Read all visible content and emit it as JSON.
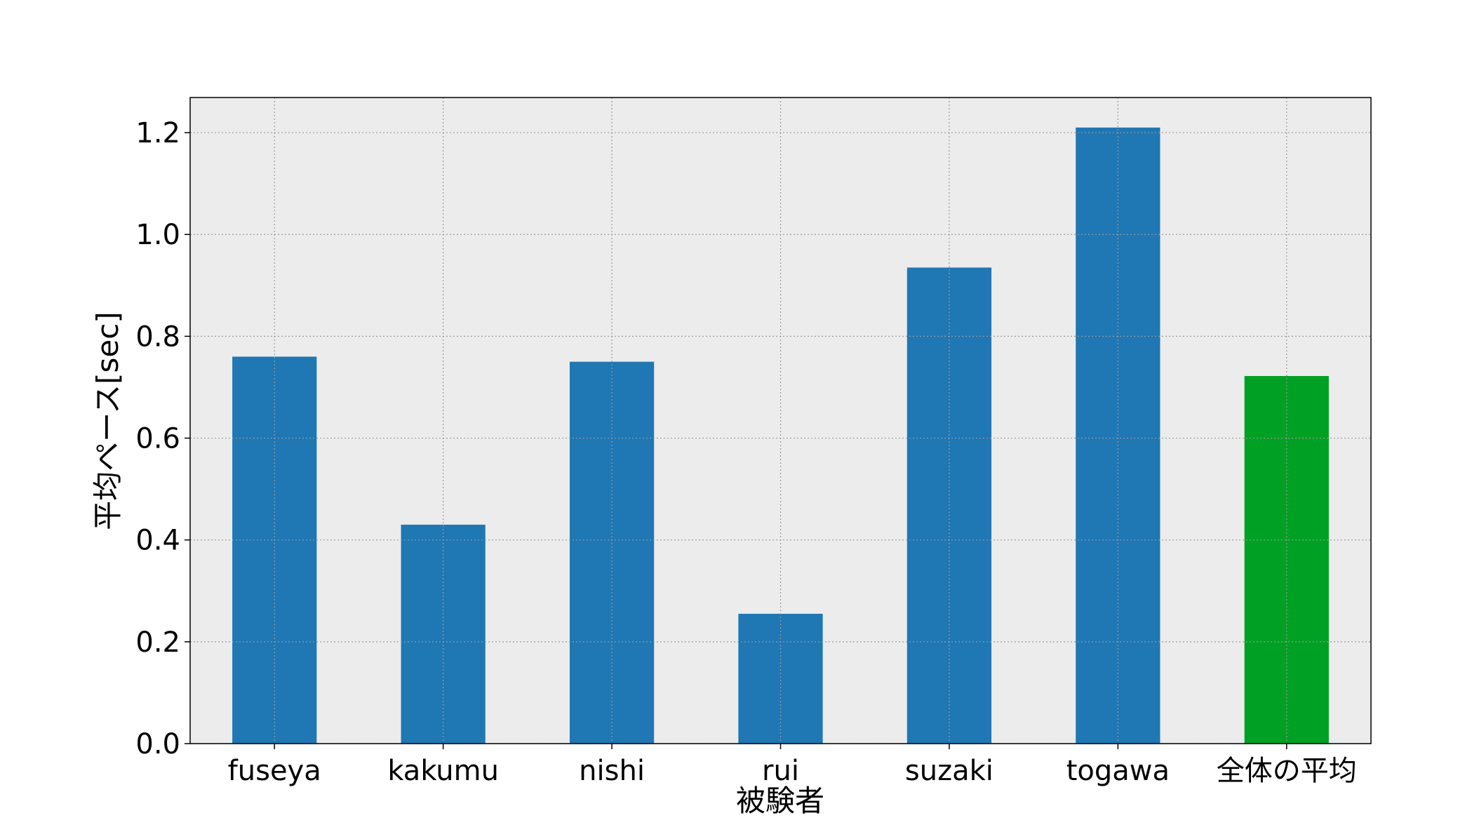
{
  "chart_data": {
    "type": "bar",
    "categories": [
      "fuseya",
      "kakumu",
      "nishi",
      "rui",
      "suzaki",
      "togawa",
      "全体の平均"
    ],
    "values": [
      0.76,
      0.43,
      0.75,
      0.255,
      0.935,
      1.21,
      0.722
    ],
    "bar_colors": [
      "#1f77b4",
      "#1f77b4",
      "#1f77b4",
      "#1f77b4",
      "#1f77b4",
      "#1f77b4",
      "#00a024"
    ],
    "xlabel": "被験者",
    "ylabel": "平均ペース[sec]",
    "ylim": [
      0,
      1.269
    ],
    "yticks": [
      "0.0",
      "0.2",
      "0.4",
      "0.6",
      "0.8",
      "1.0",
      "1.2"
    ],
    "grid": true,
    "plot_background": "#ececec"
  }
}
